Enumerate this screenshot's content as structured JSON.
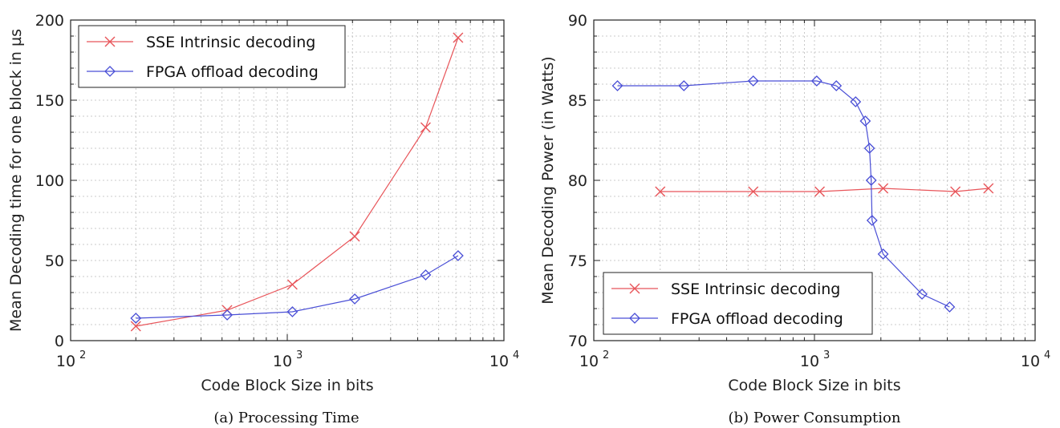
{
  "chart_data": [
    {
      "type": "line",
      "caption": "(a) Processing Time",
      "xlabel": "Code Block Size in bits",
      "ylabel": "Mean Decoding time for one block in µs",
      "xscale": "log",
      "xlim": [
        100,
        10000
      ],
      "ylim": [
        0,
        200
      ],
      "xticks": [
        {
          "value": 100,
          "base": "10",
          "exp": "2"
        },
        {
          "value": 1000,
          "base": "10",
          "exp": "3"
        },
        {
          "value": 10000,
          "base": "10",
          "exp": "4"
        }
      ],
      "yticks": [
        "0",
        "50",
        "100",
        "150",
        "200"
      ],
      "grid": true,
      "legend_position": "top-left",
      "series": [
        {
          "name": "SSE Intrinsic decoding",
          "color": "#e8555a",
          "marker": "x",
          "x": [
            200,
            528,
            1056,
            2048,
            4352,
            6144
          ],
          "y": [
            9,
            19,
            35,
            65,
            133,
            189
          ]
        },
        {
          "name": "FPGA offload decoding",
          "color": "#4a4fd6",
          "marker": "diamond",
          "x": [
            200,
            528,
            1056,
            2048,
            4352,
            6144
          ],
          "y": [
            14,
            16,
            18,
            26,
            41,
            53
          ]
        }
      ]
    },
    {
      "type": "line",
      "caption": "(b) Power Consumption",
      "xlabel": "Code Block Size in bits",
      "ylabel": "Mean Decoding Power (in Watts)",
      "xscale": "log",
      "xlim": [
        100,
        10000
      ],
      "ylim": [
        70,
        90
      ],
      "xticks": [
        {
          "value": 100,
          "base": "10",
          "exp": "2"
        },
        {
          "value": 1000,
          "base": "10",
          "exp": "3"
        },
        {
          "value": 10000,
          "base": "10",
          "exp": "4"
        }
      ],
      "yticks": [
        "70",
        "75",
        "80",
        "85",
        "90"
      ],
      "grid": true,
      "legend_position": "bottom-left",
      "series": [
        {
          "name": "SSE Intrinsic decoding",
          "color": "#e8555a",
          "marker": "x",
          "x": [
            200,
            528,
            1056,
            2048,
            4352,
            6144
          ],
          "y": [
            79.3,
            79.3,
            79.3,
            79.5,
            79.3,
            79.5
          ]
        },
        {
          "name": "FPGA offload decoding",
          "color": "#4a4fd6",
          "marker": "diamond",
          "x": [
            128,
            256,
            528,
            1024,
            1256,
            1536,
            1700,
            1776,
            1808,
            1824,
            2048,
            3072,
            4096
          ],
          "y": [
            85.9,
            85.9,
            86.2,
            86.2,
            85.9,
            84.9,
            83.7,
            82.0,
            80.0,
            77.5,
            75.4,
            72.9,
            72.1
          ]
        }
      ]
    }
  ]
}
